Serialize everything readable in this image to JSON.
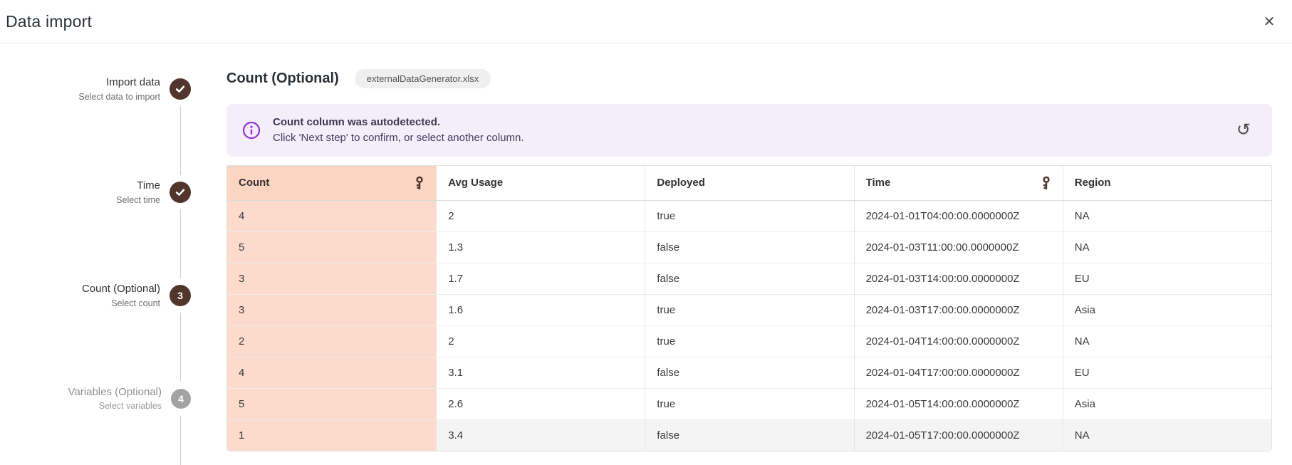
{
  "header": {
    "title": "Data import"
  },
  "icons": {
    "close": "✕",
    "reset": "↺",
    "info": "info-circle",
    "done": "check",
    "key": "key"
  },
  "colors": {
    "accent_brown": "#52362e",
    "count_header_highlight": "#fbd4c2",
    "count_cell_highlight": "#fcdbcc",
    "banner_bg": "#f4edfa",
    "banner_icon_purple": "#8f35d6",
    "pending_gray": "#a3a3a3"
  },
  "stepper": {
    "steps": [
      {
        "label": "Import data",
        "sublabel": "Select data to import",
        "state": "done"
      },
      {
        "label": "Time",
        "sublabel": "Select time",
        "state": "done"
      },
      {
        "label": "Count (Optional)",
        "sublabel": "Select count",
        "state": "active",
        "number": "3"
      },
      {
        "label": "Variables (Optional)",
        "sublabel": "Select variables",
        "state": "pending",
        "number": "4"
      }
    ]
  },
  "main": {
    "title": "Count (Optional)",
    "file_chip": "externalDataGenerator.xlsx",
    "banner": {
      "title": "Count column was autodetected.",
      "message": "Click 'Next step' to confirm, or select another column."
    },
    "table": {
      "columns": [
        {
          "label": "Count",
          "key": true,
          "highlighted": true
        },
        {
          "label": "Avg Usage",
          "key": false,
          "highlighted": false
        },
        {
          "label": "Deployed",
          "key": false,
          "highlighted": false
        },
        {
          "label": "Time",
          "key": true,
          "highlighted": false
        },
        {
          "label": "Region",
          "key": false,
          "highlighted": false
        }
      ],
      "rows": [
        [
          "4",
          "2",
          "true",
          "2024-01-01T04:00:00.0000000Z",
          "NA"
        ],
        [
          "5",
          "1.3",
          "false",
          "2024-01-03T11:00:00.0000000Z",
          "NA"
        ],
        [
          "3",
          "1.7",
          "false",
          "2024-01-03T14:00:00.0000000Z",
          "EU"
        ],
        [
          "3",
          "1.6",
          "true",
          "2024-01-03T17:00:00.0000000Z",
          "Asia"
        ],
        [
          "2",
          "2",
          "true",
          "2024-01-04T14:00:00.0000000Z",
          "NA"
        ],
        [
          "4",
          "3.1",
          "false",
          "2024-01-04T17:00:00.0000000Z",
          "EU"
        ],
        [
          "5",
          "2.6",
          "true",
          "2024-01-05T14:00:00.0000000Z",
          "Asia"
        ],
        [
          "1",
          "3.4",
          "false",
          "2024-01-05T17:00:00.0000000Z",
          "NA"
        ]
      ]
    }
  }
}
